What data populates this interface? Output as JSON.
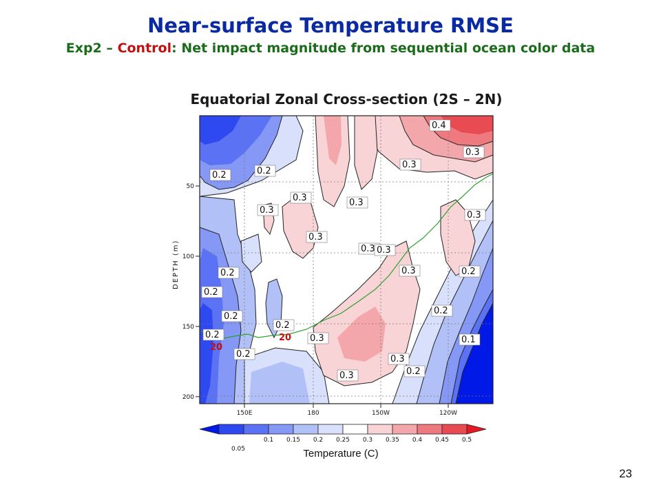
{
  "slide": {
    "title": "Near-surface Temperature RMSE",
    "subtitle_prefix": "Exp2 – ",
    "subtitle_control": "Control",
    "subtitle_suffix": ":  Net impact magnitude from sequential ocean color data",
    "section_title": "Equatorial Zonal Cross-section (2S – 2N)",
    "page_number": "23"
  },
  "chart_data": {
    "type": "heatmap",
    "title": "Equatorial Zonal Cross-section (2S – 2N)",
    "xlabel": "",
    "ylabel": "DEPTH (m)",
    "x_ticks": [
      "150E",
      "180",
      "150W",
      "120W"
    ],
    "y_ticks": [
      "50",
      "100",
      "150",
      "200"
    ],
    "y_tick_values": [
      50,
      100,
      150,
      200
    ],
    "ylim": [
      0,
      205
    ],
    "y_inverted": true,
    "colorbar": {
      "label": "Temperature (C)",
      "levels": [
        "0.05",
        "0.1",
        "0.15",
        "0.2",
        "0.25",
        "0.3",
        "0.35",
        "0.4",
        "0.45",
        "0.5"
      ],
      "colors": [
        "#0019e6",
        "#2f49f0",
        "#5a72f3",
        "#8598f5",
        "#b2c0f8",
        "#d9e0fb",
        "#ffffff",
        "#f9d4d6",
        "#f3a7ab",
        "#ee7a80",
        "#e84b52",
        "#e31a22"
      ]
    },
    "contour_labels": [
      "0.2",
      "0.2",
      "0.3",
      "0.3",
      "0.3",
      "0.3",
      "0.3",
      "0.4",
      "0.3",
      "0.3",
      "0.2",
      "0.3",
      "0.3",
      "0.3",
      "0.2",
      "0.2",
      "0.2",
      "0.2",
      "0.3",
      "0.2",
      "0.3",
      "0.3",
      "0.2",
      "0.1",
      "0.2",
      "0.2"
    ],
    "isotherm_label": "20",
    "isotherm_color": "#2ca02c"
  }
}
